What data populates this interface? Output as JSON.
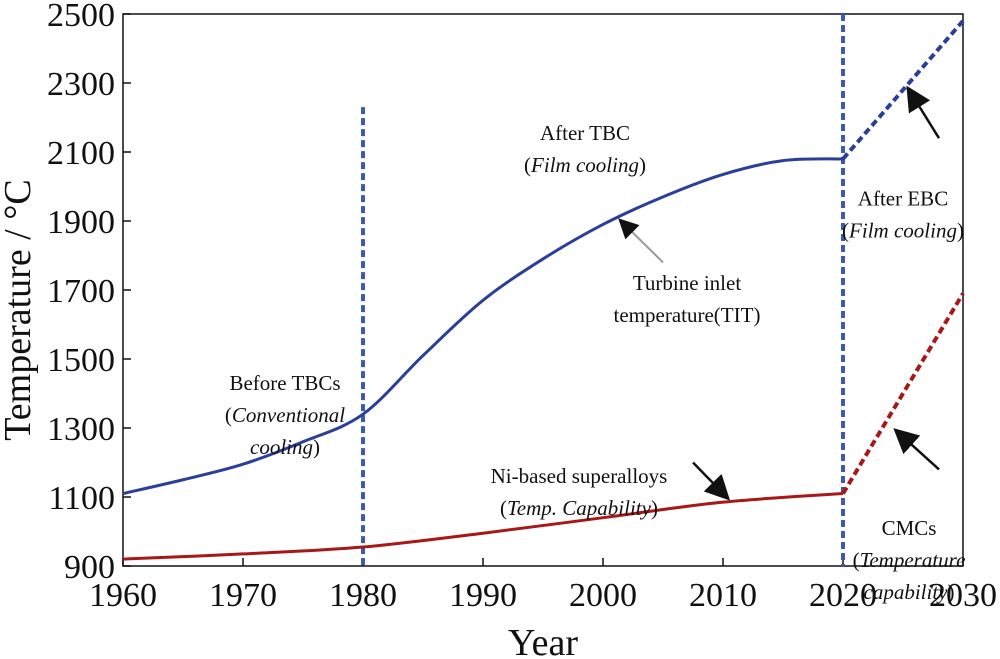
{
  "chart_data": {
    "type": "line",
    "xlabel": "Year",
    "ylabel": "Temperature / °C",
    "xlim": [
      1960,
      2030
    ],
    "ylim": [
      900,
      2500
    ],
    "xticks": [
      1960,
      1970,
      1980,
      1990,
      2000,
      2010,
      2020,
      2030
    ],
    "yticks": [
      900,
      1100,
      1300,
      1500,
      1700,
      1900,
      2100,
      2300,
      2500
    ],
    "grid": false,
    "series": [
      {
        "name": "Turbine inlet temperature(TIT)",
        "color": "#2b3f9a",
        "style": "solid",
        "x": [
          1960,
          1965,
          1970,
          1975,
          1980,
          1985,
          1990,
          1995,
          2000,
          2005,
          2010,
          2015,
          2020
        ],
        "y": [
          1110,
          1150,
          1195,
          1260,
          1340,
          1510,
          1670,
          1790,
          1890,
          1970,
          2035,
          2075,
          2080
        ]
      },
      {
        "name": "After EBC (Film cooling)",
        "color": "#2b3f9a",
        "style": "dashed",
        "x": [
          2020,
          2030
        ],
        "y": [
          2080,
          2480
        ]
      },
      {
        "name": "Ni-based superalloys (Temp. Capability)",
        "color": "#a81818",
        "style": "solid",
        "x": [
          1960,
          1970,
          1980,
          1990,
          2000,
          2010,
          2020
        ],
        "y": [
          920,
          935,
          955,
          995,
          1040,
          1085,
          1110
        ]
      },
      {
        "name": "CMCs (Temperature capability)",
        "color": "#a81818",
        "style": "dashed",
        "x": [
          2020,
          2030
        ],
        "y": [
          1110,
          1690
        ]
      }
    ],
    "vlines": [
      {
        "x": 1980,
        "y_from": 900,
        "y_to": 2230,
        "color": "#3a5bb0"
      },
      {
        "x": 2020,
        "y_from": 900,
        "y_to": 2500,
        "color": "#3a5bb0"
      }
    ],
    "annotations": [
      {
        "id": "before",
        "lines": [
          "Before TBCs",
          "(Conventional",
          "cooling)"
        ],
        "at": [
          1973.5,
          1410
        ]
      },
      {
        "id": "after-tbc",
        "lines": [
          "After TBC",
          "(Film cooling)"
        ],
        "at": [
          1998.5,
          2135
        ]
      },
      {
        "id": "tit",
        "lines": [
          "Turbine inlet",
          "temperature(TIT)"
        ],
        "at": [
          2007,
          1700
        ]
      },
      {
        "id": "ni",
        "lines": [
          "Ni-based superalloys",
          "(Temp. Capability)"
        ],
        "at": [
          1998,
          1140
        ]
      },
      {
        "id": "after-ebc",
        "lines": [
          "After EBC",
          "(Film cooling)"
        ],
        "at": [
          2025,
          1945
        ]
      },
      {
        "id": "cmcs",
        "lines": [
          "CMCs",
          "(Temperature",
          "capability)"
        ],
        "at": [
          2025.5,
          990
        ]
      }
    ]
  }
}
